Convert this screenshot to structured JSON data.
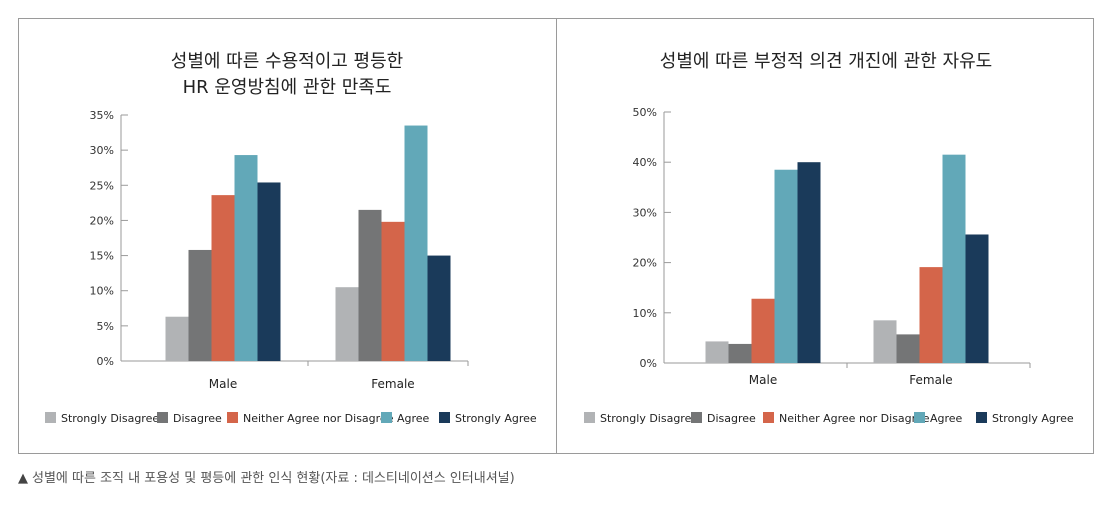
{
  "caption": {
    "marker": "▲",
    "text": "성별에 따른 조직 내 포용성 및 평등에 관한 인식 현황(자료 : 데스티네이션스 인터내셔널)"
  },
  "legend_colors": [
    "#b1b3b5",
    "#747576",
    "#d4654a",
    "#62a8b8",
    "#1a3a5a"
  ],
  "chart_data": [
    {
      "type": "bar",
      "title_lines": [
        "성별에 따른 수용적이고 평등한",
        "HR 운영방침에 관한 만족도"
      ],
      "categories": [
        "Male",
        "Female"
      ],
      "ylim": [
        0,
        35
      ],
      "yticks": [
        0,
        5,
        10,
        15,
        20,
        25,
        30,
        35
      ],
      "ytick_labels": [
        "0%",
        "5%",
        "10%",
        "15%",
        "20%",
        "25%",
        "30%",
        "35%"
      ],
      "series": [
        {
          "name": "Strongly Disagree",
          "values": [
            6.3,
            10.5
          ]
        },
        {
          "name": "Disagree",
          "values": [
            15.8,
            21.5
          ]
        },
        {
          "name": "Neither Agree nor Disagree",
          "values": [
            23.6,
            19.8
          ]
        },
        {
          "name": "Agree",
          "values": [
            29.3,
            33.5
          ]
        },
        {
          "name": "Strongly Agree",
          "values": [
            25.4,
            15.0
          ]
        }
      ],
      "legend_position": "bottom"
    },
    {
      "type": "bar",
      "title_lines": [
        "성별에 따른 부정적 의견 개진에 관한 자유도"
      ],
      "categories": [
        "Male",
        "Female"
      ],
      "ylim": [
        0,
        50
      ],
      "yticks": [
        0,
        10,
        20,
        30,
        40,
        50
      ],
      "ytick_labels": [
        "0%",
        "10%",
        "20%",
        "30%",
        "40%",
        "50%"
      ],
      "series": [
        {
          "name": "Strongly Disagree",
          "values": [
            4.3,
            8.5
          ]
        },
        {
          "name": "Disagree",
          "values": [
            3.8,
            5.7
          ]
        },
        {
          "name": "Neither Agree nor Disagree",
          "values": [
            12.8,
            19.1
          ]
        },
        {
          "name": "Agree",
          "values": [
            38.5,
            41.5
          ]
        },
        {
          "name": "Strongly Agree",
          "values": [
            40.0,
            25.6
          ]
        }
      ],
      "legend_position": "bottom"
    }
  ]
}
